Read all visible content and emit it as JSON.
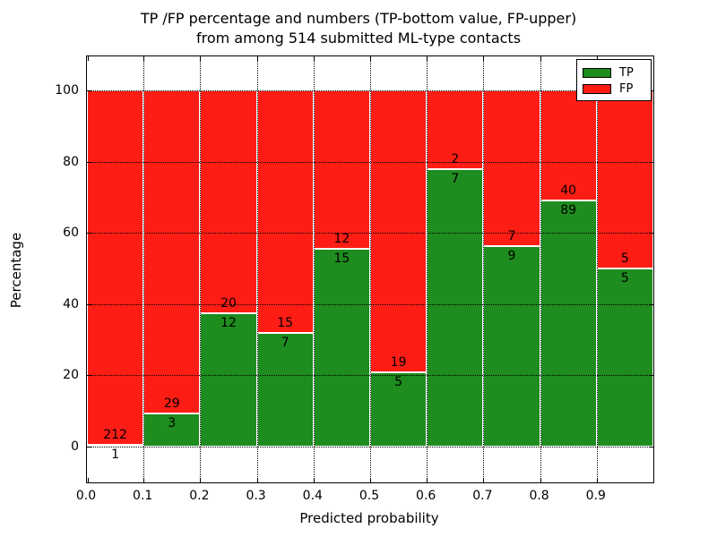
{
  "title": {
    "line1": "TP /FP percentage and numbers (TP-bottom value, FP-upper)",
    "line2": "from among 514 submitted ML-type contacts"
  },
  "axes": {
    "xlabel": "Predicted probability",
    "ylabel": "Percentage",
    "yticks": [
      0,
      20,
      40,
      60,
      80,
      100
    ],
    "xticks": [
      "0.0",
      "0.1",
      "0.2",
      "0.3",
      "0.4",
      "0.5",
      "0.6",
      "0.7",
      "0.8",
      "0.9"
    ]
  },
  "legend": {
    "position": "upper right",
    "items": [
      {
        "label": "TP",
        "color": "#1e8c1e"
      },
      {
        "label": "FP",
        "color": "#fd1d15"
      }
    ]
  },
  "chart_data": {
    "type": "bar",
    "stacked": true,
    "normalized_to_percent": true,
    "title": "TP /FP percentage and numbers (TP-bottom value, FP-upper) from among 514 submitted ML-type contacts",
    "xlabel": "Predicted probability",
    "ylabel": "Percentage",
    "ylim": [
      -10,
      110
    ],
    "xlim": [
      0.0,
      1.0
    ],
    "bin_width": 0.1,
    "bin_starts": [
      0.0,
      0.1,
      0.2,
      0.3,
      0.4,
      0.5,
      0.6,
      0.7,
      0.8,
      0.9
    ],
    "grid": "dotted",
    "series": [
      {
        "name": "TP",
        "color": "#1e8c1e",
        "counts": [
          1,
          3,
          12,
          7,
          15,
          5,
          7,
          9,
          89,
          5
        ]
      },
      {
        "name": "FP",
        "color": "#fd1d15",
        "counts": [
          212,
          29,
          20,
          15,
          12,
          19,
          2,
          7,
          40,
          5
        ]
      }
    ],
    "total_contacts": 514
  }
}
